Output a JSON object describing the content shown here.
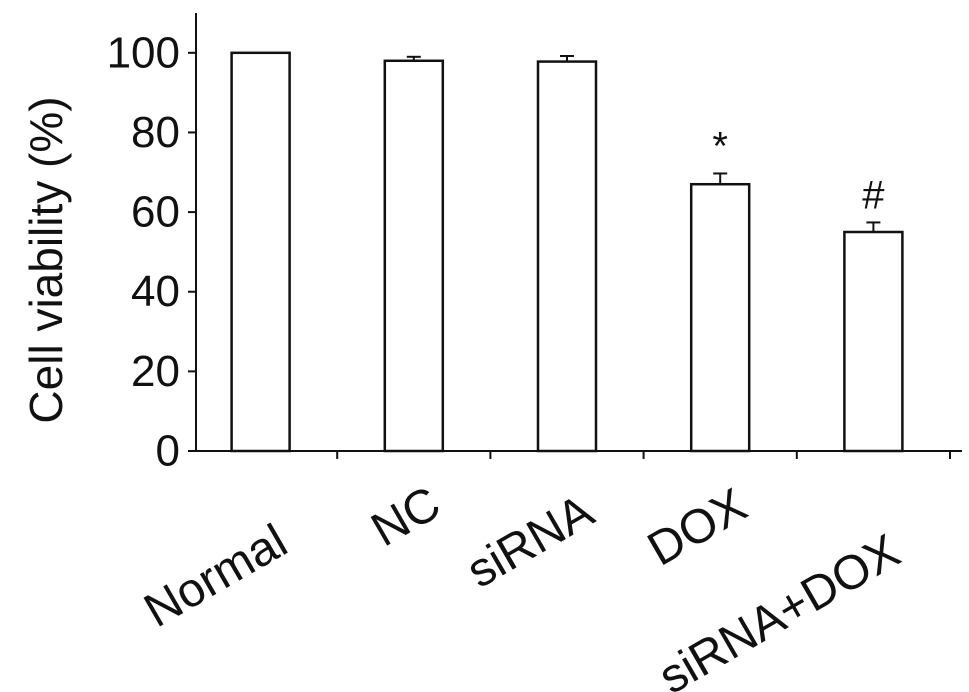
{
  "chart_data": {
    "type": "bar",
    "title": "",
    "xlabel": "",
    "ylabel": "Cell viability (%)",
    "ylim": [
      0,
      110
    ],
    "yticks": [
      "0",
      "20",
      "40",
      "60",
      "80",
      "100"
    ],
    "categories": [
      "Normal",
      "NC",
      "siRNA",
      "DOX",
      "siRNA+DOX"
    ],
    "values": [
      100,
      98,
      97.8,
      67,
      55
    ],
    "errors": [
      0,
      1,
      1.4,
      2.7,
      2.4
    ],
    "annotations": [
      "",
      "",
      "",
      "*",
      "#"
    ],
    "bar_fill": "#ffffff",
    "bar_stroke": "#111111",
    "grid": false,
    "legend": "none"
  }
}
